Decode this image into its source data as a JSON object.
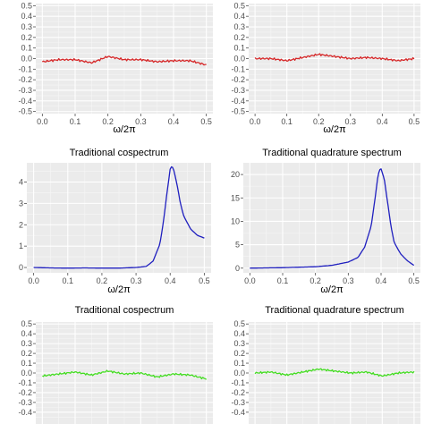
{
  "chart_data": [
    {
      "type": "line",
      "title": "",
      "xlabel": "ω/2π",
      "ylabel": "",
      "xlim": [
        -0.02,
        0.52
      ],
      "ylim": [
        -0.52,
        0.52
      ],
      "xticks": [
        "0.0",
        "0.1",
        "0.2",
        "0.3",
        "0.4",
        "0.5"
      ],
      "yticks": [
        "0.5",
        "0.4",
        "0.3",
        "0.2",
        "0.1",
        "0.0",
        "-0.1",
        "-0.2",
        "-0.3",
        "-0.4",
        "-0.5"
      ],
      "grid": true,
      "series": [
        {
          "color": "#d62728",
          "x": [
            0,
            0.05,
            0.1,
            0.15,
            0.2,
            0.25,
            0.3,
            0.35,
            0.4,
            0.45,
            0.5
          ],
          "values": [
            -0.03,
            -0.01,
            -0.01,
            -0.04,
            0.02,
            -0.01,
            -0.01,
            -0.03,
            -0.02,
            -0.02,
            -0.06
          ]
        }
      ]
    },
    {
      "type": "line",
      "title": "",
      "xlabel": "ω/2π",
      "ylabel": "",
      "xlim": [
        -0.02,
        0.52
      ],
      "ylim": [
        -0.52,
        0.52
      ],
      "xticks": [
        "0.0",
        "0.1",
        "0.2",
        "0.3",
        "0.4",
        "0.5"
      ],
      "yticks": [
        "0.5",
        "0.4",
        "0.3",
        "0.2",
        "0.1",
        "0.0",
        "-0.1",
        "-0.2",
        "-0.3",
        "-0.4",
        "-0.5"
      ],
      "grid": true,
      "series": [
        {
          "color": "#d62728",
          "x": [
            0,
            0.05,
            0.1,
            0.15,
            0.2,
            0.25,
            0.3,
            0.35,
            0.4,
            0.45,
            0.5
          ],
          "values": [
            0.0,
            0.0,
            -0.02,
            0.01,
            0.04,
            0.02,
            0.0,
            0.01,
            0.0,
            -0.02,
            0.0
          ]
        }
      ]
    },
    {
      "type": "line",
      "title": "Traditional cospectrum",
      "xlabel": "ω/2π",
      "ylabel": "",
      "xlim": [
        -0.02,
        0.52
      ],
      "ylim": [
        -0.25,
        4.9
      ],
      "xticks": [
        "0.0",
        "0.1",
        "0.2",
        "0.3",
        "0.4",
        "0.5"
      ],
      "yticks": [
        "4",
        "3",
        "2",
        "1",
        "0"
      ],
      "grid": true,
      "series": [
        {
          "color": "#1f1fbf",
          "x": [
            0,
            0.05,
            0.1,
            0.15,
            0.2,
            0.25,
            0.3,
            0.33,
            0.35,
            0.37,
            0.38,
            0.39,
            0.4,
            0.405,
            0.41,
            0.42,
            0.43,
            0.44,
            0.46,
            0.48,
            0.5
          ],
          "values": [
            0.0,
            -0.02,
            -0.03,
            -0.02,
            -0.03,
            -0.03,
            0.0,
            0.05,
            0.3,
            1.1,
            2.1,
            3.4,
            4.6,
            4.75,
            4.6,
            3.9,
            3.0,
            2.4,
            1.8,
            1.5,
            1.38
          ]
        }
      ]
    },
    {
      "type": "line",
      "title": "Traditional quadrature spectrum",
      "xlabel": "ω/2π",
      "ylabel": "",
      "xlim": [
        -0.02,
        0.52
      ],
      "ylim": [
        -1,
        22.5
      ],
      "xticks": [
        "0.0",
        "0.1",
        "0.2",
        "0.3",
        "0.4",
        "0.5"
      ],
      "yticks": [
        "20",
        "15",
        "10",
        "5",
        "0"
      ],
      "grid": true,
      "series": [
        {
          "color": "#1f1fbf",
          "x": [
            0,
            0.1,
            0.2,
            0.25,
            0.3,
            0.33,
            0.35,
            0.37,
            0.38,
            0.39,
            0.395,
            0.4,
            0.41,
            0.42,
            0.43,
            0.44,
            0.46,
            0.48,
            0.5
          ],
          "values": [
            0.0,
            0.1,
            0.3,
            0.6,
            1.3,
            2.3,
            4.5,
            9.0,
            14.0,
            19.5,
            21.0,
            21.2,
            19.0,
            14.0,
            9.0,
            5.5,
            3.0,
            1.6,
            0.6
          ]
        }
      ]
    },
    {
      "type": "line",
      "title": "Traditional cospectrum",
      "xlabel": "",
      "ylabel": "",
      "xlim": [
        -0.02,
        0.52
      ],
      "ylim": [
        -0.52,
        0.52
      ],
      "xticks": [],
      "yticks": [
        "0.5",
        "0.4",
        "0.3",
        "0.2",
        "0.1",
        "0.0",
        "-0.1",
        "-0.2",
        "-0.3",
        "-0.4"
      ],
      "grid": true,
      "series": [
        {
          "color": "#44dd22",
          "x": [
            0,
            0.05,
            0.1,
            0.15,
            0.2,
            0.25,
            0.3,
            0.35,
            0.4,
            0.45,
            0.5
          ],
          "values": [
            -0.03,
            -0.01,
            0.01,
            -0.02,
            0.02,
            -0.01,
            0.0,
            -0.04,
            -0.01,
            -0.02,
            -0.06
          ]
        }
      ]
    },
    {
      "type": "line",
      "title": "Traditional quadrature spectrum",
      "xlabel": "",
      "ylabel": "",
      "xlim": [
        -0.02,
        0.52
      ],
      "ylim": [
        -0.52,
        0.52
      ],
      "xticks": [],
      "yticks": [
        "0.5",
        "0.4",
        "0.3",
        "0.2",
        "0.1",
        "0.0",
        "-0.1",
        "-0.2",
        "-0.3",
        "-0.4"
      ],
      "grid": true,
      "series": [
        {
          "color": "#44dd22",
          "x": [
            0,
            0.05,
            0.1,
            0.15,
            0.2,
            0.25,
            0.3,
            0.35,
            0.4,
            0.45,
            0.5
          ],
          "values": [
            0.0,
            0.01,
            -0.02,
            0.01,
            0.04,
            0.02,
            0.0,
            0.01,
            -0.03,
            0.0,
            0.01
          ]
        }
      ]
    }
  ]
}
